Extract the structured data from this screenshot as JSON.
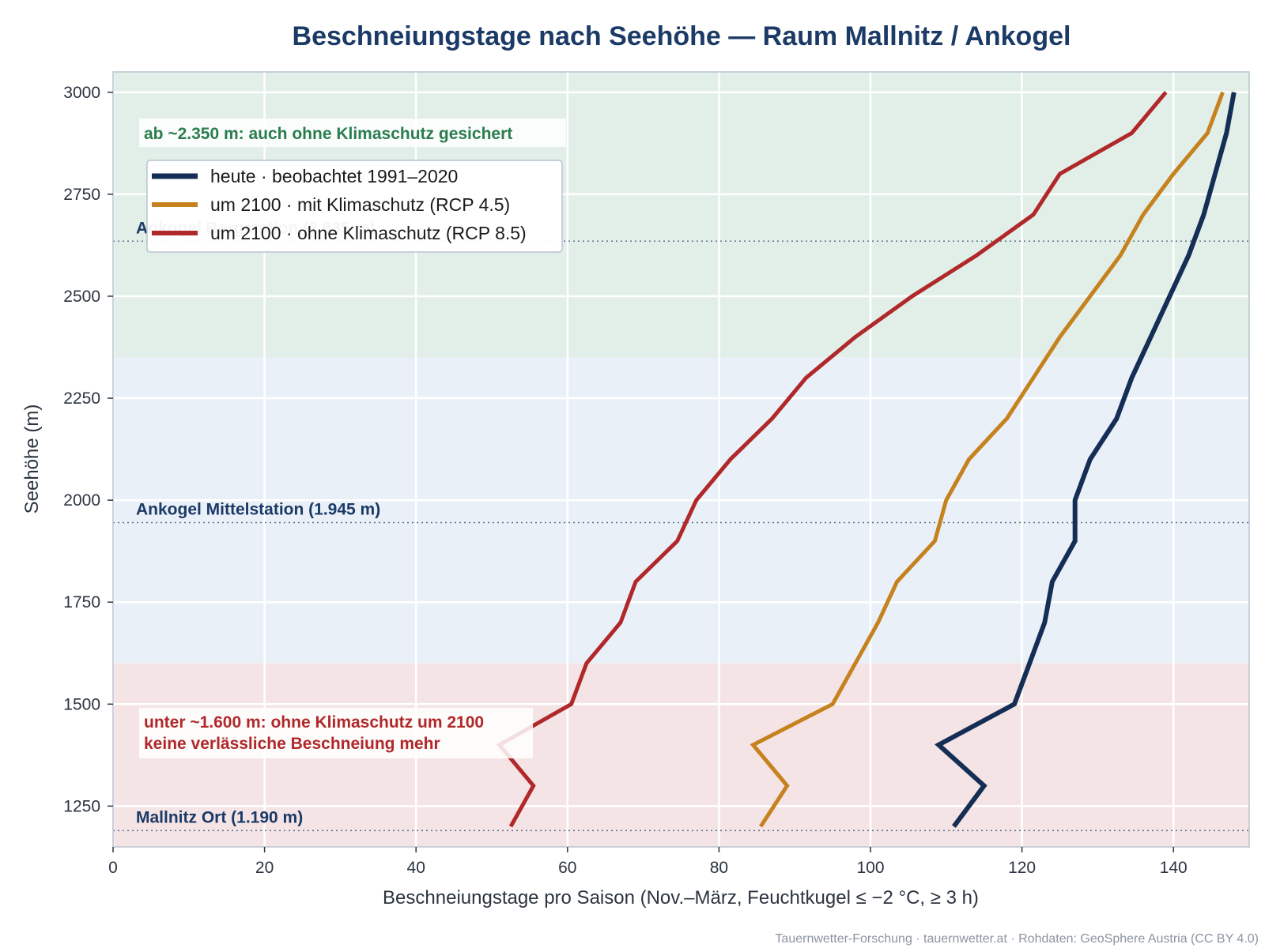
{
  "chart_data": {
    "type": "line",
    "title": "Beschneiungstage nach Seehöhe — Raum Mallnitz / Ankogel",
    "xlabel": "Beschneiungstage pro Saison (Nov.–März, Feuchtkugel ≤ −2 °C, ≥ 3 h)",
    "ylabel": "Seehöhe (m)",
    "xlim": [
      0,
      150
    ],
    "ylim": [
      1150,
      3050
    ],
    "x_ticks": [
      0,
      20,
      40,
      60,
      80,
      100,
      120,
      140
    ],
    "y_ticks": [
      1250,
      1500,
      1750,
      2000,
      2250,
      2500,
      2750,
      3000
    ],
    "grid": true,
    "legend_position": "top-left",
    "bands": [
      {
        "name": "green-zone",
        "y_from": 2350,
        "y_to": 3050,
        "color": "#e2efe8"
      },
      {
        "name": "blue-zone",
        "y_from": 1600,
        "y_to": 2350,
        "color": "#eaf0f8"
      },
      {
        "name": "red-zone",
        "y_from": 1150,
        "y_to": 1600,
        "color": "#f5e4e5"
      }
    ],
    "reference_lines": [
      {
        "label": "Mallnitz Ort (1.190 m)",
        "y": 1190
      },
      {
        "label": "Ankogel Mittelstation (1.945 m)",
        "y": 1945
      },
      {
        "label": "Ankogel Bergstation (2.635 m)",
        "y": 2635
      }
    ],
    "annotations": {
      "green": "ab ~2.350 m: auch ohne Klimaschutz gesichert",
      "red_line1": "unter ~1.600 m: ohne Klimaschutz um 2100",
      "red_line2": "keine verlässliche Beschneiung mehr"
    },
    "series": [
      {
        "name": "heute · beobachtet 1991–2020",
        "color": "#152e55",
        "width": 6,
        "points": [
          [
            111,
            1200
          ],
          [
            115,
            1300
          ],
          [
            109,
            1400
          ],
          [
            119,
            1500
          ],
          [
            121,
            1600
          ],
          [
            123,
            1700
          ],
          [
            124,
            1800
          ],
          [
            127,
            1900
          ],
          [
            127,
            2000
          ],
          [
            129,
            2100
          ],
          [
            132.5,
            2200
          ],
          [
            134.5,
            2300
          ],
          [
            137,
            2400
          ],
          [
            139.5,
            2500
          ],
          [
            142,
            2600
          ],
          [
            144,
            2700
          ],
          [
            145.5,
            2800
          ],
          [
            147,
            2900
          ],
          [
            148,
            3000
          ]
        ]
      },
      {
        "name": "um 2100 · mit Klimaschutz (RCP 4.5)",
        "color": "#c5821e",
        "width": 5,
        "points": [
          [
            85.5,
            1200
          ],
          [
            89,
            1300
          ],
          [
            84.5,
            1400
          ],
          [
            95,
            1500
          ],
          [
            98,
            1600
          ],
          [
            101,
            1700
          ],
          [
            103.5,
            1800
          ],
          [
            108.5,
            1900
          ],
          [
            110,
            2000
          ],
          [
            113,
            2100
          ],
          [
            118,
            2200
          ],
          [
            121.5,
            2300
          ],
          [
            125,
            2400
          ],
          [
            129,
            2500
          ],
          [
            133,
            2600
          ],
          [
            136,
            2700
          ],
          [
            140,
            2800
          ],
          [
            144.5,
            2900
          ],
          [
            146.5,
            3000
          ]
        ]
      },
      {
        "name": "um 2100 · ohne Klimaschutz (RCP 8.5)",
        "color": "#b0282a",
        "width": 5,
        "points": [
          [
            52.5,
            1200
          ],
          [
            55.5,
            1300
          ],
          [
            51,
            1400
          ],
          [
            60.5,
            1500
          ],
          [
            62.5,
            1600
          ],
          [
            67,
            1700
          ],
          [
            69,
            1800
          ],
          [
            74.5,
            1900
          ],
          [
            77,
            2000
          ],
          [
            81.5,
            2100
          ],
          [
            87,
            2200
          ],
          [
            91.5,
            2300
          ],
          [
            98,
            2400
          ],
          [
            105.5,
            2500
          ],
          [
            114,
            2600
          ],
          [
            121.5,
            2700
          ],
          [
            125,
            2800
          ],
          [
            134.5,
            2900
          ],
          [
            139,
            3000
          ]
        ]
      }
    ],
    "source": "Tauernwetter-Forschung · tauernwetter.at · Rohdaten: GeoSphere Austria (CC BY 4.0)"
  }
}
